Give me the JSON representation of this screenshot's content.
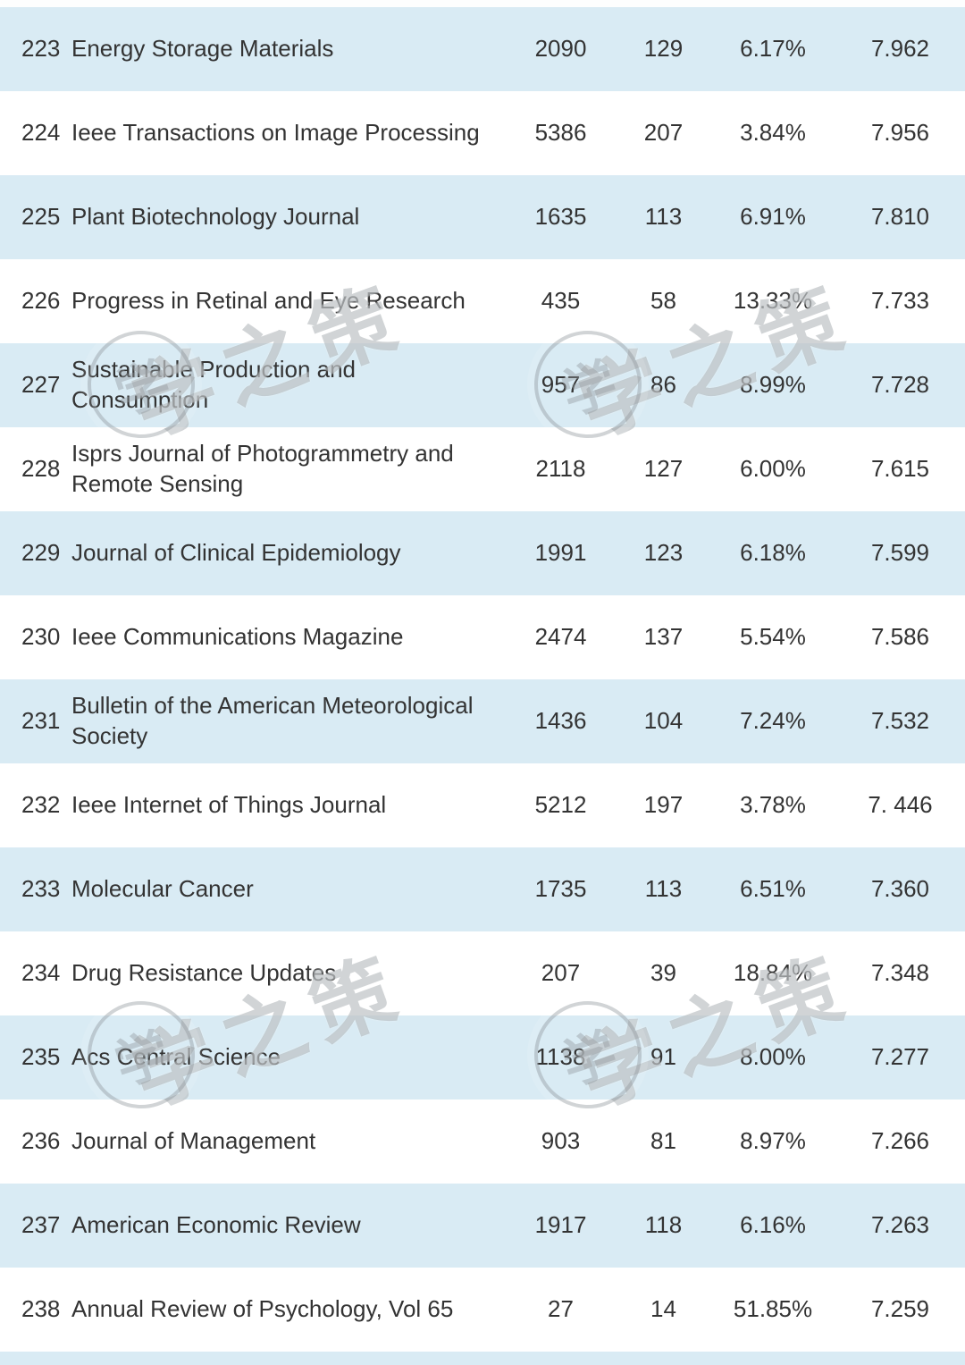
{
  "colors": {
    "row_alt": "#d9ebf4",
    "row_base": "#ffffff",
    "text": "#333333",
    "watermark": "rgba(145,152,158,0.42)"
  },
  "watermark": {
    "text": "学之策",
    "seal_char": "学"
  },
  "table": {
    "rows": [
      {
        "rank": "223",
        "name": "Energy Storage Materials",
        "v1": "2090",
        "v2": "129",
        "pct": "6.17%",
        "score": "7.962"
      },
      {
        "rank": "224",
        "name": "Ieee Transactions on Image Processing",
        "v1": "5386",
        "v2": "207",
        "pct": "3.84%",
        "score": "7.956"
      },
      {
        "rank": "225",
        "name": "Plant Biotechnology Journal",
        "v1": "1635",
        "v2": "113",
        "pct": "6.91%",
        "score": "7.810"
      },
      {
        "rank": "226",
        "name": "Progress in Retinal and Eye Research",
        "v1": "435",
        "v2": "58",
        "pct": "13.33%",
        "score": "7.733"
      },
      {
        "rank": "227",
        "name": "Sustainable Production and Consumption",
        "v1": "957",
        "v2": "86",
        "pct": "8.99%",
        "score": "7.728"
      },
      {
        "rank": "228",
        "name": "Isprs Journal of Photogrammetry and Remote Sensing",
        "v1": "2118",
        "v2": "127",
        "pct": "6.00%",
        "score": "7.615"
      },
      {
        "rank": "229",
        "name": "Journal of Clinical Epidemiology",
        "v1": "1991",
        "v2": "123",
        "pct": "6.18%",
        "score": "7.599"
      },
      {
        "rank": "230",
        "name": "Ieee Communications Magazine",
        "v1": "2474",
        "v2": "137",
        "pct": "5.54%",
        "score": "7.586"
      },
      {
        "rank": "231",
        "name": "Bulletin of the American Meteorological Society",
        "v1": "1436",
        "v2": "104",
        "pct": "7.24%",
        "score": "7.532"
      },
      {
        "rank": "232",
        "name": "Ieee Internet of Things Journal",
        "v1": "5212",
        "v2": "197",
        "pct": "3.78%",
        "score": "7. 446"
      },
      {
        "rank": "233",
        "name": "Molecular Cancer",
        "v1": "1735",
        "v2": "113",
        "pct": "6.51%",
        "score": "7.360"
      },
      {
        "rank": "234",
        "name": "Drug Resistance Updates",
        "v1": "207",
        "v2": "39",
        "pct": "18.84%",
        "score": "7.348"
      },
      {
        "rank": "235",
        "name": "Acs Central Science",
        "v1": "1138",
        "v2": "91",
        "pct": "8.00%",
        "score": "7.277"
      },
      {
        "rank": "236",
        "name": "Journal of Management",
        "v1": "903",
        "v2": "81",
        "pct": "8.97%",
        "score": "7.266"
      },
      {
        "rank": "237",
        "name": "American Economic Review",
        "v1": "1917",
        "v2": "118",
        "pct": "6.16%",
        "score": "7.263"
      },
      {
        "rank": "238",
        "name": "Annual Review of Psychology, Vol 65",
        "v1": "27",
        "v2": "14",
        "pct": "51.85%",
        "score": "7.259"
      }
    ]
  }
}
